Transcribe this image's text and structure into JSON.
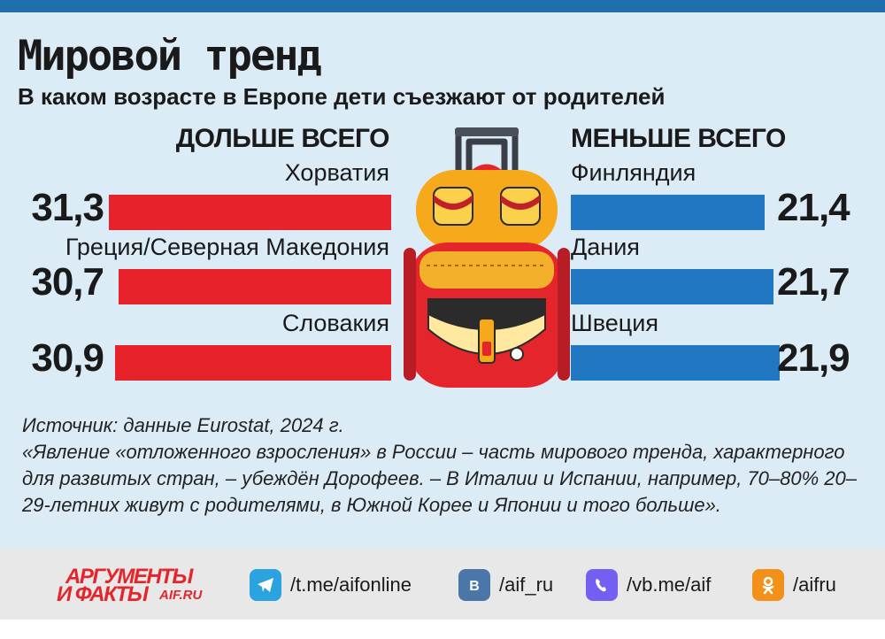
{
  "title": "Мировой тренд",
  "subtitle": "В  каком возрасте в Европе дети съезжают от родителей",
  "colors": {
    "left_bars": "#e8222a",
    "right_bars": "#1f78c1",
    "background": "#dcecf7",
    "top_bar": "#1f6fae",
    "footer_strip": "#e8e8e8"
  },
  "chart_data": [
    {
      "type": "bar",
      "title": "ДОЛЬШЕ ВСЕГО",
      "categories": [
        "Хорватия",
        "Греция/Северная Македония",
        "Словакия"
      ],
      "values": [
        31.3,
        30.7,
        30.9
      ],
      "value_labels": [
        "31,3",
        "30,7",
        "30,9"
      ],
      "orientation": "horizontal",
      "grid": false
    },
    {
      "type": "bar",
      "title": "МЕНЬШЕ ВСЕГО",
      "categories": [
        "Финляндия",
        "Дания",
        "Швеция"
      ],
      "values": [
        21.4,
        21.7,
        21.9
      ],
      "value_labels": [
        "21,4",
        "21,7",
        "21,9"
      ],
      "orientation": "horizontal",
      "grid": false
    }
  ],
  "source": {
    "line1": "Источник: данные Eurostat, 2024 г.",
    "quote": "«Явление «отложенного взросления» в России – часть мирового тренда, характерного для развитых стран, – убеждён Дорофеев. – В Италии и Испании, например, 70–80% 20–29-летних живут с родителями, в Южной Корее и Японии и того больше»."
  },
  "footer": {
    "brand_line1": "АРГУМЕНТЫ",
    "brand_line2": "И ФАКТЫ",
    "brand_domain": "AIF.RU",
    "links": [
      {
        "icon": "telegram-icon",
        "text": "/t.me/aifonline"
      },
      {
        "icon": "vk-icon",
        "text": "/aif_ru"
      },
      {
        "icon": "viber-icon",
        "text": "/vb.me/aif"
      },
      {
        "icon": "odnoklassniki-icon",
        "text": "/aifru"
      }
    ]
  }
}
